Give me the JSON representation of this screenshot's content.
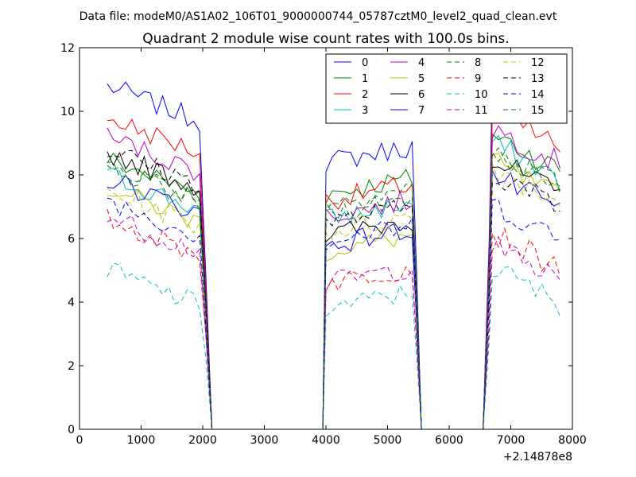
{
  "header": "Data file: modeM0/AS1A02_106T01_9000000744_05787cztM0_level2_quad_clean.evt",
  "chart_data": {
    "type": "line",
    "title": "Quadrant 2 module wise count rates with 100.0s bins.",
    "xlabel": "",
    "ylabel": "",
    "x_offset_label": "+2.14878e8",
    "xlim": [
      0,
      8000
    ],
    "ylim": [
      0,
      12
    ],
    "xticks": [
      "0",
      "1000",
      "2000",
      "3000",
      "4000",
      "5000",
      "6000",
      "7000",
      "8000"
    ],
    "yticks": [
      "0",
      "2",
      "4",
      "6",
      "8",
      "10",
      "12"
    ],
    "grid": false,
    "legend_position": "top-right",
    "segments": [
      {
        "start": 450,
        "end": 1950
      },
      {
        "start": 4000,
        "end": 5400
      },
      {
        "start": 6700,
        "end": 7850
      }
    ],
    "gaps": [
      {
        "start": 2150,
        "end": 3900
      },
      {
        "start": 5550,
        "end": 6550
      }
    ],
    "series": [
      {
        "name": "0",
        "color": "#0000ff",
        "style": "solid",
        "levels": [
          10.8,
          8.8,
          10.9
        ]
      },
      {
        "name": "1",
        "color": "#008000",
        "style": "solid",
        "levels": [
          8.5,
          7.8,
          9.3
        ]
      },
      {
        "name": "2",
        "color": "#ff0000",
        "style": "solid",
        "levels": [
          9.8,
          7.6,
          10.0
        ]
      },
      {
        "name": "3",
        "color": "#00bfbf",
        "style": "solid",
        "levels": [
          8.0,
          7.0,
          9.0
        ]
      },
      {
        "name": "4",
        "color": "#bf00bf",
        "style": "solid",
        "levels": [
          9.2,
          7.1,
          9.5
        ]
      },
      {
        "name": "5",
        "color": "#bfbf00",
        "style": "solid",
        "levels": [
          7.6,
          6.0,
          8.4
        ]
      },
      {
        "name": "6",
        "color": "#000000",
        "style": "solid",
        "levels": [
          8.7,
          6.5,
          8.5
        ]
      },
      {
        "name": "7",
        "color": "#0000ff",
        "style": "solid",
        "levels": [
          7.9,
          6.2,
          8.0
        ]
      },
      {
        "name": "8",
        "color": "#008000",
        "style": "dashed",
        "levels": [
          8.2,
          7.2,
          8.8
        ]
      },
      {
        "name": "9",
        "color": "#ff0000",
        "style": "dashed",
        "levels": [
          6.6,
          5.0,
          6.2
        ]
      },
      {
        "name": "10",
        "color": "#00bfbf",
        "style": "dashed",
        "levels": [
          5.0,
          4.2,
          5.1
        ]
      },
      {
        "name": "11",
        "color": "#bf00bf",
        "style": "dashed",
        "levels": [
          6.7,
          5.0,
          5.8
        ]
      },
      {
        "name": "12",
        "color": "#bfbf00",
        "style": "dashed",
        "levels": [
          7.5,
          6.6,
          8.3
        ]
      },
      {
        "name": "13",
        "color": "#000000",
        "style": "dashed",
        "levels": [
          8.8,
          6.9,
          8.1
        ]
      },
      {
        "name": "14",
        "color": "#0000ff",
        "style": "dashed",
        "levels": [
          7.2,
          6.3,
          7.1
        ]
      },
      {
        "name": "15",
        "color": "#008000",
        "style": "dashed",
        "levels": [
          8.4,
          7.5,
          8.7
        ]
      }
    ]
  }
}
